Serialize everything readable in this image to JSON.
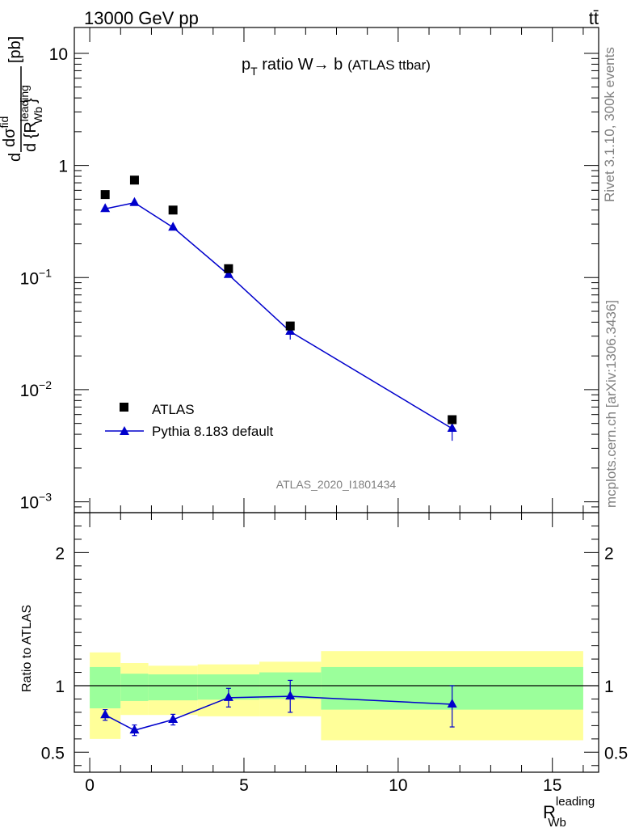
{
  "header": {
    "energy": "13000 GeV pp",
    "process": "tt̄",
    "title": "p",
    "title_sub": "T",
    "title_rest": " ratio W→ b",
    "title_small": "(ATLAS ttbar)"
  },
  "side": {
    "rivet": "Rivet 3.1.10,  300k events",
    "url": "mcplots.cern.ch [arXiv:1306.3436]"
  },
  "analysis_id": "ATLAS_2020_I1801434",
  "ylabel_main": {
    "prefix": "d",
    "numerator": "dσ",
    "num_sup": "fid",
    "denominator": "d {R",
    "den_sup": "leading",
    "den_sub": "Wb",
    "den_close": "}",
    "unit": "[pb]"
  },
  "ylabel_ratio": "Ratio to ATLAS",
  "xlabel": {
    "base": "R",
    "sup": "leading",
    "sub": "Wb"
  },
  "colors": {
    "data": "#000000",
    "mc": "#0000cc",
    "band_inner": "#9bff9b",
    "band_outer": "#ffff99"
  },
  "chart_data": [
    {
      "type": "scatter",
      "name": "main",
      "yscale": "log",
      "xlim": [
        -0.5,
        16.5
      ],
      "ylim": [
        0.0008,
        17
      ],
      "yticks": [
        {
          "v": 10,
          "base": "10",
          "exp": ""
        },
        {
          "v": 1,
          "base": "1",
          "exp": ""
        },
        {
          "v": 0.1,
          "base": "10",
          "exp": "−1"
        },
        {
          "v": 0.01,
          "base": "10",
          "exp": "−2"
        },
        {
          "v": 0.001,
          "base": "10",
          "exp": "−3"
        }
      ],
      "series": [
        {
          "name": "ATLAS",
          "marker": "square",
          "x": [
            0.5,
            1.45,
            2.7,
            4.5,
            6.5,
            11.75
          ],
          "y": [
            0.55,
            0.74,
            0.4,
            0.12,
            0.037,
            0.0054
          ]
        },
        {
          "name": "Pythia 8.183 default",
          "marker": "triangle",
          "x": [
            0.5,
            1.45,
            2.7,
            4.5,
            6.5,
            11.75
          ],
          "y": [
            0.41,
            0.465,
            0.28,
            0.106,
            0.033,
            0.0045
          ],
          "yerr_low": [
            0.01,
            0.01,
            0.007,
            0.004,
            0.005,
            0.001
          ],
          "yerr_high": [
            0.01,
            0.01,
            0.007,
            0.004,
            0.004,
            0.0007
          ]
        }
      ],
      "legend": {
        "position": "bottom-left",
        "entries": [
          "ATLAS",
          "Pythia 8.183 default"
        ]
      }
    },
    {
      "type": "scatter",
      "name": "ratio",
      "xlim": [
        -0.5,
        16.5
      ],
      "ylim": [
        0.35,
        2.3
      ],
      "yticks": [
        0.5,
        1,
        2
      ],
      "xticks": [
        0,
        5,
        10,
        15
      ],
      "bands": [
        {
          "x0": 0.0,
          "x1": 1.0,
          "inner": [
            0.83,
            1.14
          ],
          "outer": [
            0.6,
            1.25
          ]
        },
        {
          "x0": 1.0,
          "x1": 1.9,
          "inner": [
            0.885,
            1.09
          ],
          "outer": [
            0.78,
            1.17
          ]
        },
        {
          "x0": 1.9,
          "x1": 3.5,
          "inner": [
            0.89,
            1.085
          ],
          "outer": [
            0.78,
            1.15
          ]
        },
        {
          "x0": 3.5,
          "x1": 5.5,
          "inner": [
            0.895,
            1.085
          ],
          "outer": [
            0.77,
            1.16
          ]
        },
        {
          "x0": 5.5,
          "x1": 7.5,
          "inner": [
            0.9,
            1.1
          ],
          "outer": [
            0.77,
            1.18
          ]
        },
        {
          "x0": 7.5,
          "x1": 16.0,
          "inner": [
            0.82,
            1.14
          ],
          "outer": [
            0.59,
            1.26
          ]
        }
      ],
      "series": [
        {
          "name": "Pythia 8.183 default",
          "marker": "triangle",
          "x": [
            0.5,
            1.45,
            2.7,
            4.5,
            6.5,
            11.75
          ],
          "y": [
            0.78,
            0.665,
            0.745,
            0.91,
            0.92,
            0.86
          ],
          "yerr_low": [
            0.04,
            0.04,
            0.04,
            0.07,
            0.12,
            0.17
          ],
          "yerr_high": [
            0.04,
            0.04,
            0.04,
            0.07,
            0.12,
            0.14
          ]
        }
      ]
    }
  ]
}
